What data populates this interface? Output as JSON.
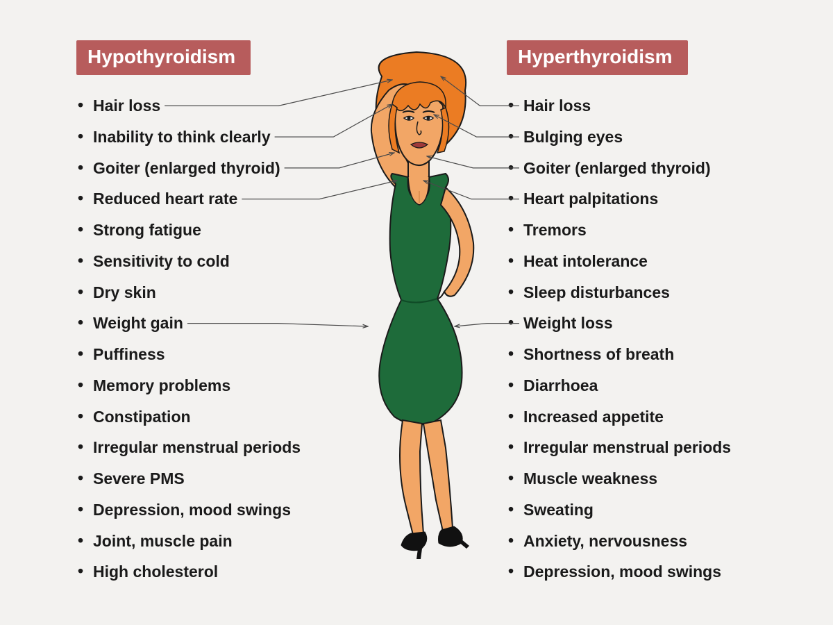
{
  "background_color": "#f3f2f0",
  "header_color": "#b75c5c",
  "header_text_color": "#ffffff",
  "text_color": "#1a1a1a",
  "font_family": "Arial, Helvetica, sans-serif",
  "item_fontsize": 23,
  "header_fontsize": 28,
  "figure_colors": {
    "hair": "#eb7c23",
    "skin": "#f2a666",
    "skin_shadow": "#d98a4a",
    "dress": "#1e6b3a",
    "dress_highlight": "#2d8a4d",
    "shoes": "#111111",
    "lips": "#a03a3a",
    "outline": "#1a1a1a"
  },
  "left": {
    "title": "Hypothyroidism",
    "items": [
      "Hair loss",
      "Inability to think clearly",
      "Goiter (enlarged thyroid)",
      "Reduced heart rate",
      "Strong fatigue",
      "Sensitivity to cold",
      "Dry skin",
      "Weight gain",
      "Puffiness",
      "Memory problems",
      "Constipation",
      "Irregular menstrual periods",
      "Severe PMS",
      "Depression, mood swings",
      "Joint, muscle pain",
      "High cholesterol"
    ]
  },
  "right": {
    "title": "Hyperthyroidism",
    "items": [
      "Hair loss",
      "Bulging eyes",
      "Goiter (enlarged thyroid)",
      "Heart palpitations",
      "Tremors",
      "Heat intolerance",
      "Sleep disturbances",
      "Weight loss",
      "Shortness of breath",
      "Diarrhoea",
      "Increased appetite",
      "Irregular menstrual periods",
      "Muscle weakness",
      "Sweating",
      "Anxiety, nervousness",
      "Depression, mood swings"
    ]
  },
  "pointers_left": [
    {
      "from_item": 0,
      "to": [
        565,
        115
      ]
    },
    {
      "from_item": 1,
      "to": [
        565,
        150
      ]
    },
    {
      "from_item": 2,
      "to": [
        568,
        220
      ]
    },
    {
      "from_item": 3,
      "to": [
        572,
        260
      ]
    },
    {
      "from_item": 7,
      "to": [
        530,
        470
      ]
    }
  ],
  "pointers_right": [
    {
      "from_item": 0,
      "to": [
        635,
        110
      ]
    },
    {
      "from_item": 1,
      "to": [
        625,
        165
      ]
    },
    {
      "from_item": 2,
      "to": [
        615,
        225
      ]
    },
    {
      "from_item": 3,
      "to": [
        610,
        260
      ]
    },
    {
      "from_item": 7,
      "to": [
        655,
        470
      ]
    }
  ]
}
